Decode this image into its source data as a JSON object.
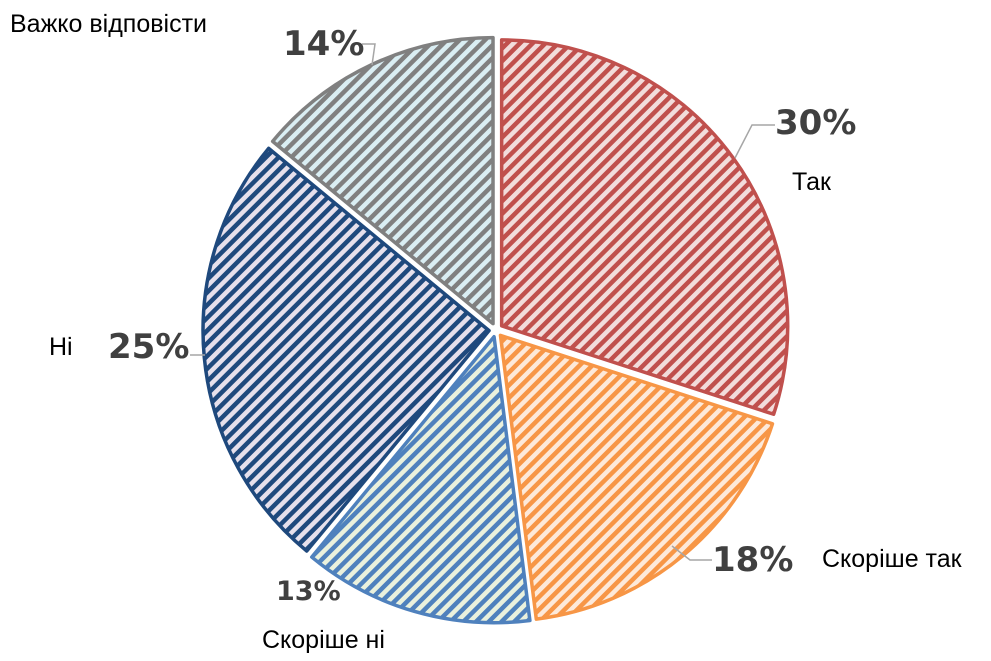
{
  "chart_data": {
    "type": "pie",
    "title": "",
    "legend": "none",
    "slices": [
      {
        "name": "Так",
        "value": 30,
        "label": "30%",
        "color": "#C0504D",
        "stroke": "#C0504D",
        "fill_bg": "#F2DCDB"
      },
      {
        "name": "Скоріше так",
        "value": 18,
        "label": "18%",
        "color": "#F79646",
        "stroke": "#F79646",
        "fill_bg": "#FDE9D9"
      },
      {
        "name": "Скоріше ні",
        "value": 13,
        "label": "13%",
        "color": "#4F81BD",
        "stroke": "#4F81BD",
        "fill_bg": "#EAF1DD"
      },
      {
        "name": "Ні",
        "value": 25,
        "label": "25%",
        "color": "#1F497D",
        "stroke": "#1F497D",
        "fill_bg": "#E6E0EC"
      },
      {
        "name": "Важко відповісти",
        "value": 14,
        "label": "14%",
        "color": "#808080",
        "stroke": "#808080",
        "fill_bg": "#DAEEF3"
      }
    ]
  }
}
